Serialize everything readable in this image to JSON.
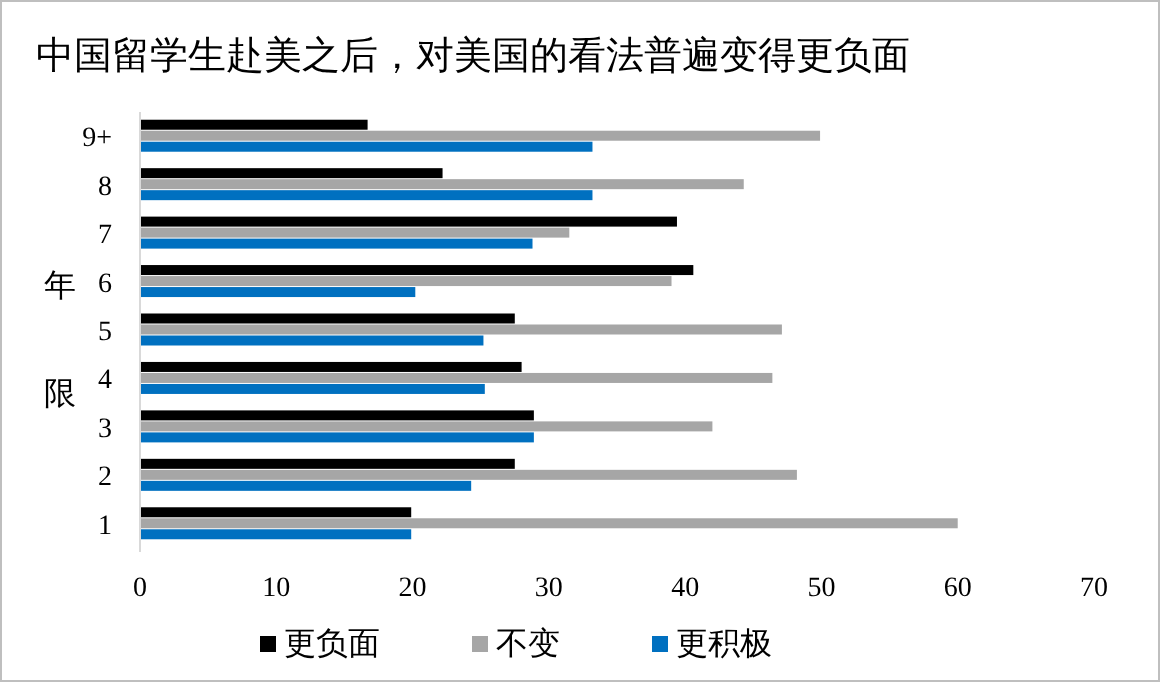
{
  "chart_data": {
    "type": "bar",
    "orientation": "horizontal",
    "title": "中国留学生赴美之后，对美国的看法普遍变得更负面",
    "ylabel": "年限",
    "categories": [
      "9+",
      "8",
      "7",
      "6",
      "5",
      "4",
      "3",
      "2",
      "1"
    ],
    "series": [
      {
        "name": "更负面",
        "color": "#000000",
        "values": [
          16.7,
          22.2,
          39.4,
          40.6,
          27.5,
          28.0,
          28.9,
          27.5,
          19.9
        ]
      },
      {
        "name": "不变",
        "color": "#a6a6a6",
        "values": [
          49.9,
          44.3,
          31.5,
          39.0,
          47.1,
          46.4,
          42.0,
          48.2,
          60.0
        ]
      },
      {
        "name": "更积极",
        "color": "#0070c0",
        "values": [
          33.2,
          33.2,
          28.8,
          20.2,
          25.2,
          25.3,
          28.9,
          24.3,
          19.9
        ]
      }
    ],
    "xlim": [
      0,
      70
    ],
    "xticks": [
      0,
      10,
      20,
      30,
      40,
      50,
      60,
      70
    ],
    "grid": false,
    "legend": "bottom"
  }
}
